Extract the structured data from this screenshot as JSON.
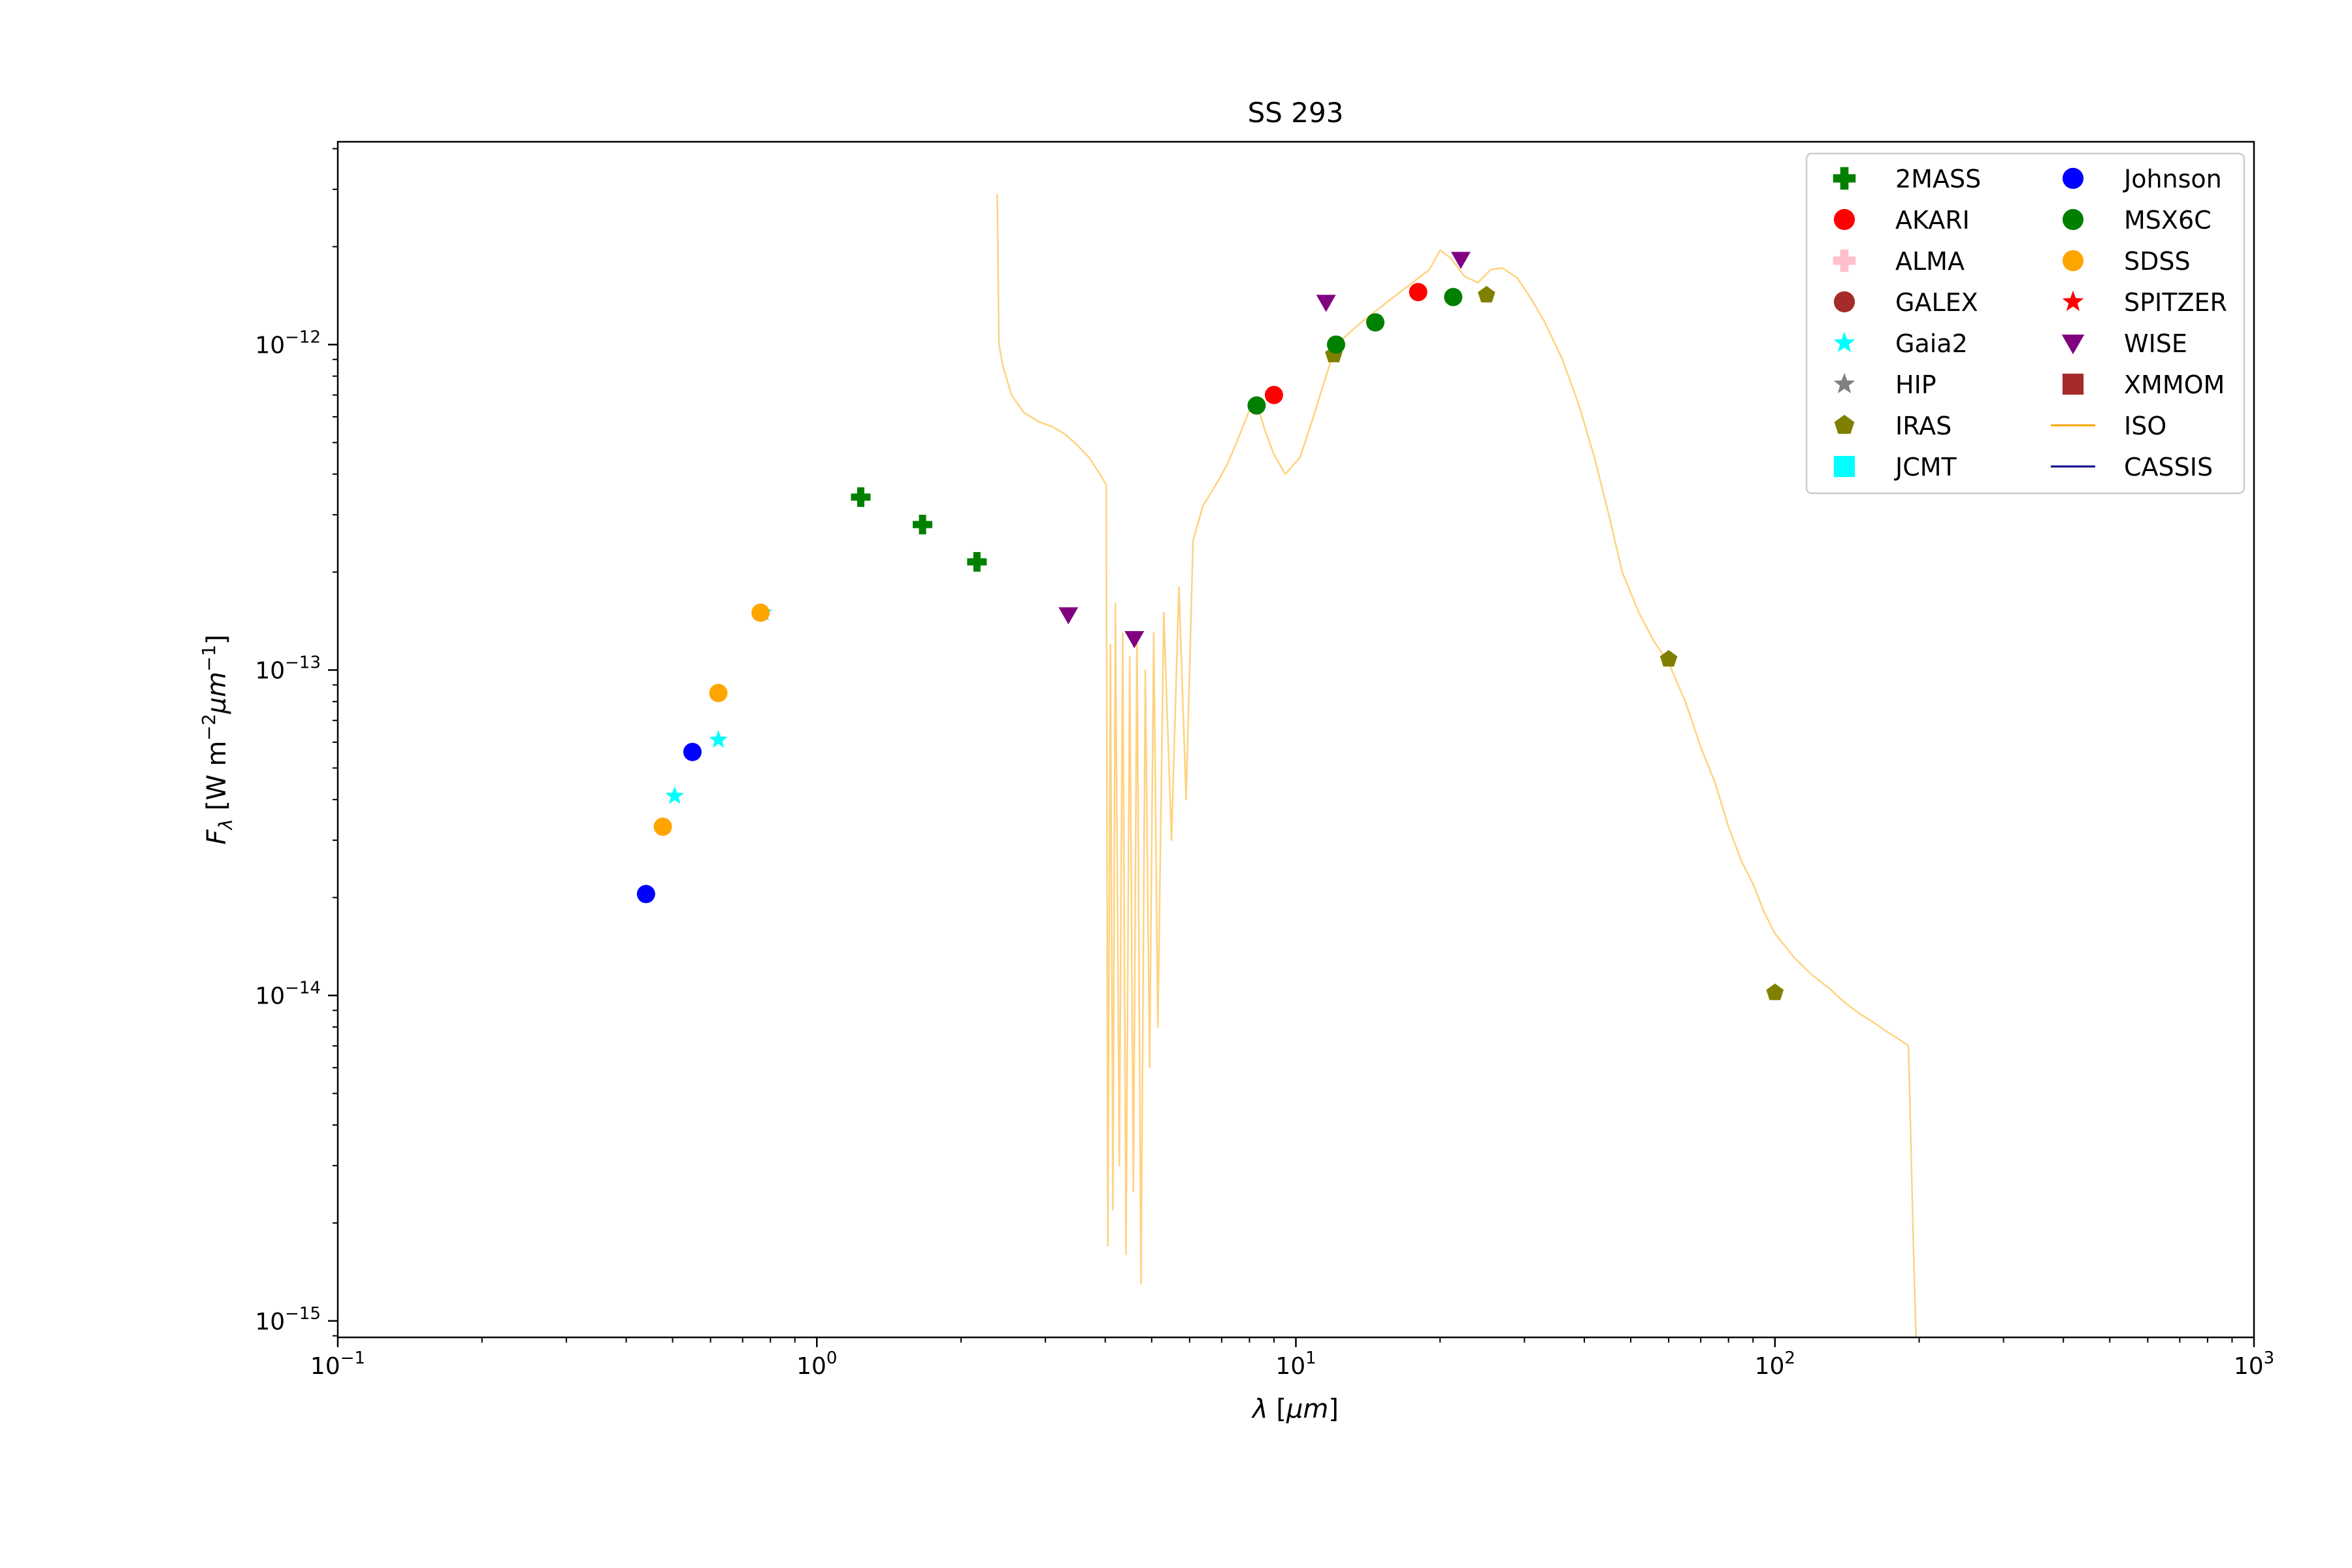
{
  "chart_data": {
    "type": "scatter",
    "title": "SS 293",
    "xlabel": "λ [μm]",
    "ylabel": "Fλ [W m−2μm−1]",
    "xscale": "log",
    "yscale": "log",
    "xlim": [
      0.1,
      1000
    ],
    "ylim": [
      8.9e-16,
      4.2e-12
    ],
    "legend_position": "top-right",
    "x_ticks": [
      {
        "value": 0.1,
        "base": "10",
        "exp": "−1"
      },
      {
        "value": 1,
        "base": "10",
        "exp": "0"
      },
      {
        "value": 10,
        "base": "10",
        "exp": "1"
      },
      {
        "value": 100,
        "base": "10",
        "exp": "2"
      },
      {
        "value": 1000,
        "base": "10",
        "exp": "3"
      }
    ],
    "y_ticks": [
      {
        "value": 1e-15,
        "base": "10",
        "exp": "−15"
      },
      {
        "value": 1e-14,
        "base": "10",
        "exp": "−14"
      },
      {
        "value": 1e-13,
        "base": "10",
        "exp": "−13"
      },
      {
        "value": 1e-12,
        "base": "10",
        "exp": "−12"
      }
    ],
    "series": [
      {
        "name": "2MASS",
        "marker": "plus",
        "color": "#008000",
        "points": [
          [
            1.235,
            3.4e-13
          ],
          [
            1.662,
            2.8e-13
          ],
          [
            2.159,
            2.15e-13
          ]
        ]
      },
      {
        "name": "AKARI",
        "marker": "circle",
        "color": "#ff0000",
        "points": [
          [
            9.0,
            7e-13
          ],
          [
            18.0,
            1.45e-12
          ]
        ]
      },
      {
        "name": "ALMA",
        "marker": "plus",
        "color": "#ffc0cb",
        "points": []
      },
      {
        "name": "GALEX",
        "marker": "circle",
        "color": "#a52a2a",
        "points": []
      },
      {
        "name": "Gaia2",
        "marker": "star",
        "color": "#00ffff",
        "points": [
          [
            0.505,
            4.1e-14
          ],
          [
            0.623,
            6.1e-14
          ],
          [
            0.772,
            1.5e-13
          ]
        ]
      },
      {
        "name": "HIP",
        "marker": "star",
        "color": "#808080",
        "points": []
      },
      {
        "name": "IRAS",
        "marker": "pentagon",
        "color": "#808000",
        "points": [
          [
            12.0,
            9.3e-13
          ],
          [
            25.0,
            1.42e-12
          ],
          [
            60.0,
            1.08e-13
          ],
          [
            100.0,
            1.02e-14
          ]
        ]
      },
      {
        "name": "JCMT",
        "marker": "square",
        "color": "#00ffff",
        "points": []
      },
      {
        "name": "Johnson",
        "marker": "circle",
        "color": "#0000ff",
        "points": [
          [
            0.44,
            2.05e-14
          ],
          [
            0.55,
            5.6e-14
          ]
        ]
      },
      {
        "name": "MSX6C",
        "marker": "circle",
        "color": "#008000",
        "points": [
          [
            8.28,
            6.5e-13
          ],
          [
            12.13,
            1e-12
          ],
          [
            14.65,
            1.17e-12
          ],
          [
            21.3,
            1.4e-12
          ]
        ]
      },
      {
        "name": "SDSS",
        "marker": "circle",
        "color": "#ffa500",
        "points": [
          [
            0.477,
            3.3e-14
          ],
          [
            0.623,
            8.5e-14
          ],
          [
            0.763,
            1.5e-13
          ]
        ]
      },
      {
        "name": "SPITZER",
        "marker": "star",
        "color": "#ff0000",
        "points": []
      },
      {
        "name": "WISE",
        "marker": "triangle-down",
        "color": "#800080",
        "points": [
          [
            3.35,
            1.48e-13
          ],
          [
            4.6,
            1.25e-13
          ],
          [
            11.56,
            1.35e-12
          ],
          [
            22.09,
            1.83e-12
          ]
        ]
      },
      {
        "name": "XMMOM",
        "marker": "square",
        "color": "#a52a2a",
        "points": []
      },
      {
        "name": "ISO",
        "marker": "line",
        "color": "#ffa500",
        "points": [
          [
            2.38,
            2.9e-12
          ],
          [
            2.4,
            1e-12
          ],
          [
            2.45,
            8.5e-13
          ],
          [
            2.55,
            7e-13
          ],
          [
            2.7,
            6.2e-13
          ],
          [
            2.9,
            5.8e-13
          ],
          [
            3.1,
            5.6e-13
          ],
          [
            3.3,
            5.3e-13
          ],
          [
            3.5,
            4.9e-13
          ],
          [
            3.7,
            4.5e-13
          ],
          [
            3.9,
            4e-13
          ],
          [
            4.02,
            3.7e-13
          ],
          [
            4.05,
            1.7e-15
          ],
          [
            4.1,
            1.2e-13
          ],
          [
            4.15,
            2.2e-15
          ],
          [
            4.2,
            1.6e-13
          ],
          [
            4.28,
            3e-15
          ],
          [
            4.35,
            1.3e-13
          ],
          [
            4.42,
            1.6e-15
          ],
          [
            4.5,
            1.1e-13
          ],
          [
            4.58,
            2.5e-15
          ],
          [
            4.66,
            1.3e-13
          ],
          [
            4.75,
            1.3e-15
          ],
          [
            4.85,
            1e-13
          ],
          [
            4.95,
            6e-15
          ],
          [
            5.05,
            1.3e-13
          ],
          [
            5.15,
            8e-15
          ],
          [
            5.3,
            1.5e-13
          ],
          [
            5.5,
            3e-14
          ],
          [
            5.7,
            1.8e-13
          ],
          [
            5.9,
            4e-14
          ],
          [
            6.1,
            2.5e-13
          ],
          [
            6.4,
            3.2e-13
          ],
          [
            6.8,
            3.7e-13
          ],
          [
            7.2,
            4.3e-13
          ],
          [
            7.6,
            5.2e-13
          ],
          [
            8.0,
            6.3e-13
          ],
          [
            8.3,
            6.6e-13
          ],
          [
            8.6,
            5.5e-13
          ],
          [
            9.0,
            4.6e-13
          ],
          [
            9.5,
            4e-13
          ],
          [
            10.2,
            4.5e-13
          ],
          [
            10.8,
            5.8e-13
          ],
          [
            11.4,
            7.5e-13
          ],
          [
            12.0,
            9.5e-13
          ],
          [
            12.6,
            1.05e-12
          ],
          [
            13.5,
            1.15e-12
          ],
          [
            14.5,
            1.25e-12
          ],
          [
            15.5,
            1.35e-12
          ],
          [
            16.5,
            1.45e-12
          ],
          [
            17.5,
            1.55e-12
          ],
          [
            19.0,
            1.7e-12
          ],
          [
            20.0,
            1.95e-12
          ],
          [
            21.0,
            1.85e-12
          ],
          [
            22.5,
            1.62e-12
          ],
          [
            24.0,
            1.55e-12
          ],
          [
            25.5,
            1.7e-12
          ],
          [
            27.0,
            1.72e-12
          ],
          [
            29.0,
            1.6e-12
          ],
          [
            31.0,
            1.38e-12
          ],
          [
            33.0,
            1.18e-12
          ],
          [
            36.0,
            9e-13
          ],
          [
            39.0,
            6.5e-13
          ],
          [
            42.0,
            4.5e-13
          ],
          [
            45.0,
            3e-13
          ],
          [
            48.0,
            2e-13
          ],
          [
            52.0,
            1.5e-13
          ],
          [
            56.0,
            1.22e-13
          ],
          [
            60.0,
            1.05e-13
          ],
          [
            65.0,
            8e-14
          ],
          [
            70.0,
            5.8e-14
          ],
          [
            75.0,
            4.5e-14
          ],
          [
            80.0,
            3.3e-14
          ],
          [
            85.0,
            2.6e-14
          ],
          [
            90.0,
            2.2e-14
          ],
          [
            95.0,
            1.8e-14
          ],
          [
            100.0,
            1.55e-14
          ],
          [
            110.0,
            1.3e-14
          ],
          [
            120.0,
            1.15e-14
          ],
          [
            130.0,
            1.05e-14
          ],
          [
            140.0,
            9.5e-15
          ],
          [
            150.0,
            8.8e-15
          ],
          [
            160.0,
            8.3e-15
          ],
          [
            170.0,
            7.8e-15
          ],
          [
            180.0,
            7.4e-15
          ],
          [
            190.0,
            7e-15
          ],
          [
            195.0,
            1.5e-15
          ],
          [
            197.0,
            8.9e-16
          ]
        ]
      },
      {
        "name": "CASSIS",
        "marker": "line",
        "color": "#00008b",
        "points": []
      }
    ]
  }
}
